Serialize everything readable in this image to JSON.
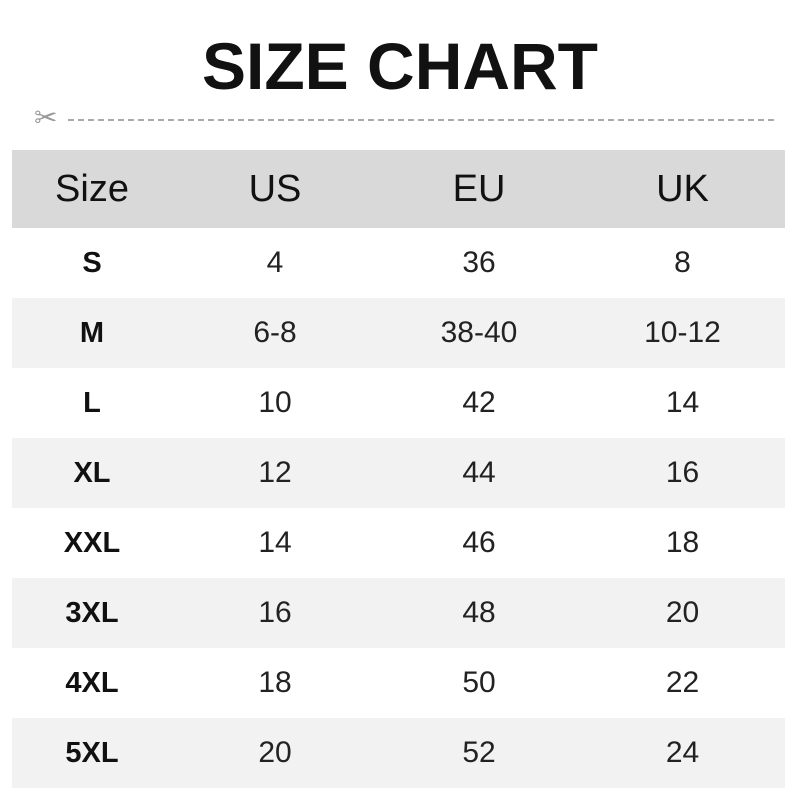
{
  "title": "SIZE CHART",
  "icons": {
    "cut_line": "scissors-icon"
  },
  "table": {
    "headers": [
      "Size",
      "US",
      "EU",
      "UK"
    ],
    "rows": [
      [
        "S",
        "4",
        "36",
        "8"
      ],
      [
        "M",
        "6-8",
        "38-40",
        "10-12"
      ],
      [
        "L",
        "10",
        "42",
        "14"
      ],
      [
        "XL",
        "12",
        "44",
        "16"
      ],
      [
        "XXL",
        "14",
        "46",
        "18"
      ],
      [
        "3XL",
        "16",
        "48",
        "20"
      ],
      [
        "4XL",
        "18",
        "50",
        "22"
      ],
      [
        "5XL",
        "20",
        "52",
        "24"
      ]
    ]
  },
  "colors": {
    "header_bg": "#d9d9d9",
    "alt_row_bg": "#f2f2f2"
  }
}
